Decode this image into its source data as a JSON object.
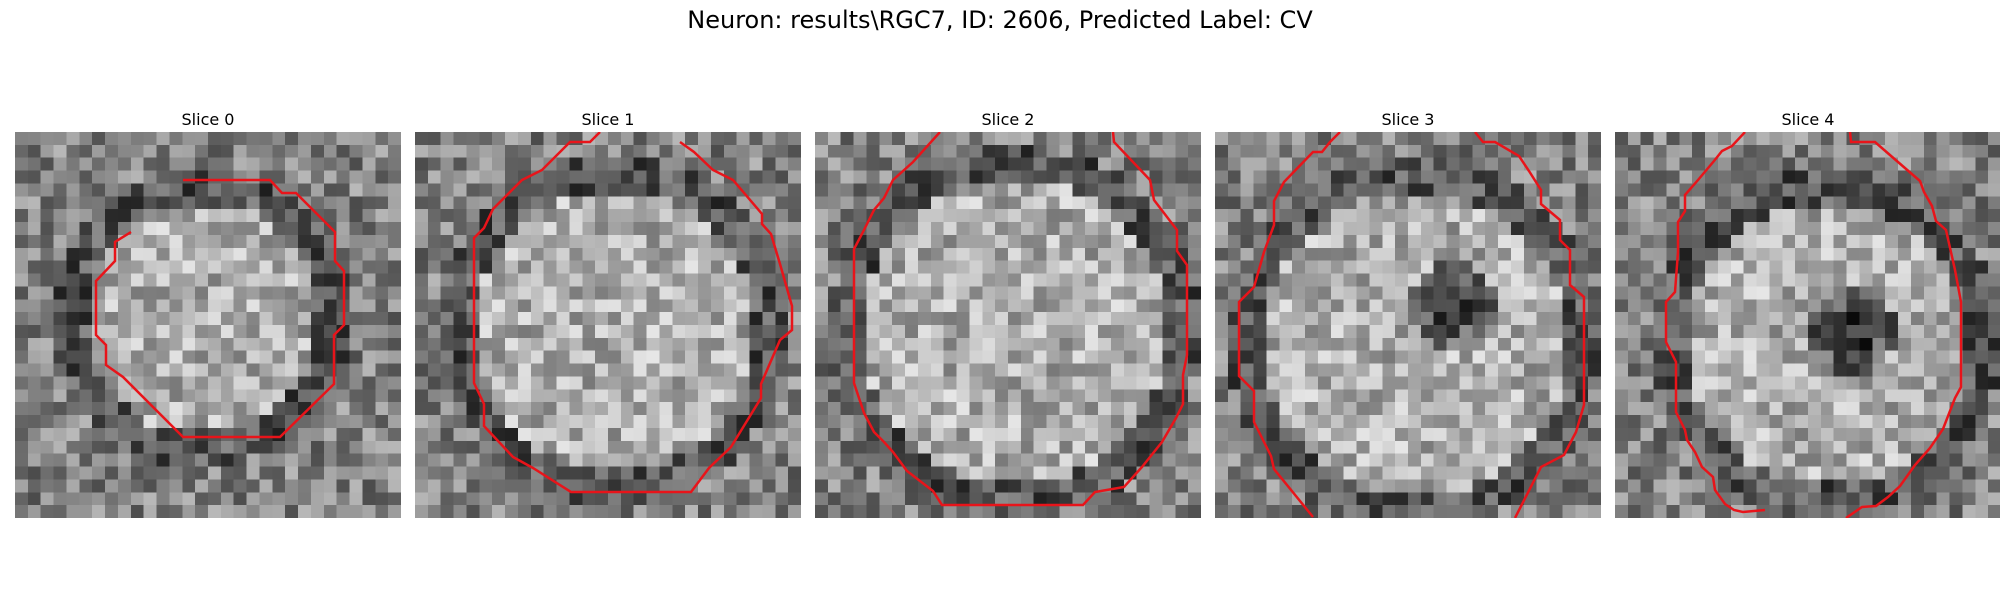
{
  "figure": {
    "title": "Neuron: results\\RGC7, ID: 2606, Predicted Label: CV"
  },
  "panels": [
    {
      "title": "Slice 0"
    },
    {
      "title": "Slice 1"
    },
    {
      "title": "Slice 2"
    },
    {
      "title": "Slice 3"
    },
    {
      "title": "Slice 4"
    }
  ],
  "colors": {
    "contour": "#e8141a",
    "colormap": "gray"
  }
}
